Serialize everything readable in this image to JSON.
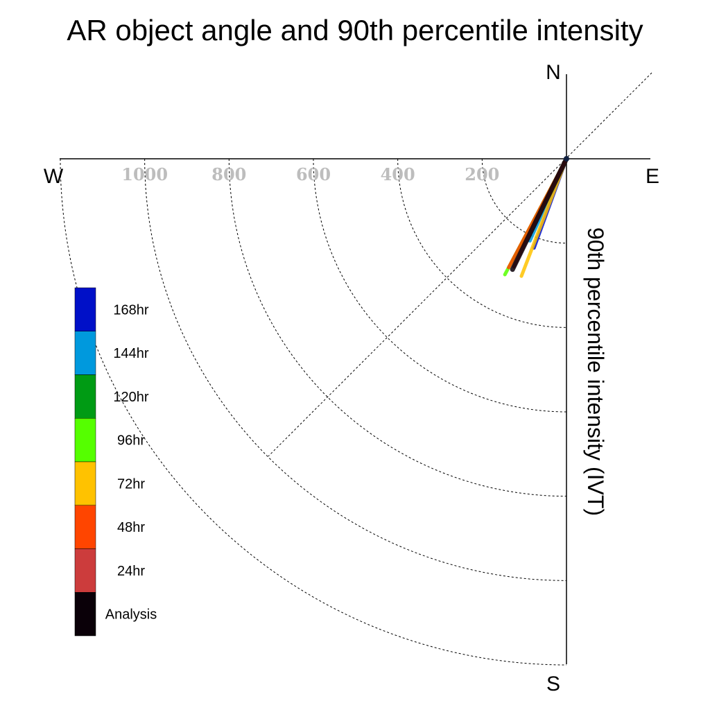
{
  "chart_data": {
    "type": "polar-vector",
    "title": "AR object angle and 90th percentile intensity",
    "ylabel": "90th percentile intensity (IVT)",
    "compass": {
      "north": "N",
      "south": "S",
      "east": "E",
      "west": "W"
    },
    "rings": [
      200,
      400,
      600,
      800,
      1000,
      1200
    ],
    "tick_labels": [
      "200",
      "400",
      "600",
      "800",
      "1000"
    ],
    "rmax": 1200,
    "series": [
      {
        "name": "168hr",
        "color": "#0010C8",
        "angle_deg": 200,
        "ivt": 225,
        "width": 5
      },
      {
        "name": "144hr",
        "color": "#0099DD",
        "angle_deg": 204,
        "ivt": 213,
        "width": 5
      },
      {
        "name": "120hr",
        "color": "#009B14",
        "angle_deg": 208,
        "ivt": 270,
        "width": 4
      },
      {
        "name": "96hr",
        "color": "#55FF00",
        "angle_deg": 208,
        "ivt": 311,
        "width": 5
      },
      {
        "name": "72hr",
        "color": "#FFC200",
        "angle_deg": 201,
        "ivt": 298,
        "width": 5
      },
      {
        "name": "48hr",
        "color": "#FF4500",
        "angle_deg": 208,
        "ivt": 292,
        "width": 5
      },
      {
        "name": "24hr",
        "color": "#CC3C3C",
        "angle_deg": 206,
        "ivt": 285,
        "width": 5
      },
      {
        "name": "Analysis",
        "color": "#0A0008",
        "angle_deg": 206,
        "ivt": 292,
        "width": 7
      }
    ],
    "legend": {
      "position": "left",
      "entries": [
        {
          "label": "168hr",
          "color": "#0010C8"
        },
        {
          "label": "144hr",
          "color": "#0099DD"
        },
        {
          "label": "120hr",
          "color": "#009B14"
        },
        {
          "label": "96hr",
          "color": "#55FF00"
        },
        {
          "label": "72hr",
          "color": "#FFC200"
        },
        {
          "label": "48hr",
          "color": "#FF4500"
        },
        {
          "label": "24hr",
          "color": "#CC3C3C"
        },
        {
          "label": "Analysis",
          "color": "#0A0008"
        }
      ]
    }
  }
}
